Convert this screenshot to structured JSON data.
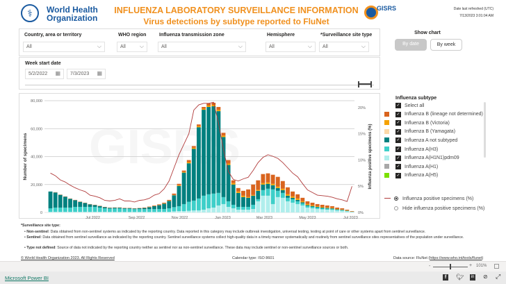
{
  "header": {
    "org_name_line1": "World Health",
    "org_name_line2": "Organization",
    "title": "INFLUENZA LABORATORY SURVEILLANCE INFORMATION",
    "subtitle": "Virus detections by subtype reported to FluNet",
    "gisrs_logo": "GISRS",
    "refresh_label": "Date last refreshed (UTC)",
    "refresh_value": "7/13/2023 3:01:04 AM"
  },
  "filters": [
    {
      "label": "Country, area or territory",
      "value": "All"
    },
    {
      "label": "WHO region",
      "value": "All"
    },
    {
      "label": "Influenza transmission zone",
      "value": "All"
    },
    {
      "label": "Hemisphere",
      "value": "All"
    },
    {
      "label": "*Surveillance site type",
      "value": "All"
    }
  ],
  "date_filter": {
    "label": "Week start date",
    "start": "5/2/2022",
    "end": "7/3/2023"
  },
  "show_chart": {
    "label": "Show chart",
    "by_date": "By date",
    "by_week": "By week",
    "selected": "By date"
  },
  "legend": {
    "title": "Influenza subtype",
    "select_all": "Select all",
    "items": [
      {
        "label": "Influenza B (lineage not determined)",
        "color": "#d9641e"
      },
      {
        "label": "Influenza B (Victoria)",
        "color": "#f5a200"
      },
      {
        "label": "Influenza B (Yamagata)",
        "color": "#fcd9a8"
      },
      {
        "label": "Influenza A not subtyped",
        "color": "#00807f"
      },
      {
        "label": "Influenza A(H3)",
        "color": "#3ecfc9"
      },
      {
        "label": "Influenza A(H1N1)pdm09",
        "color": "#b0eeec"
      },
      {
        "label": "Influenza A(H1)",
        "color": "#a8a8a8"
      },
      {
        "label": "Influenza A(H5)",
        "color": "#7be000"
      }
    ],
    "line_option": "Influenza positive specimens (%)",
    "hide_option": "Hide influenza positive specimens (%)",
    "line_color": "#b03a3a"
  },
  "chart_data": {
    "type": "bar",
    "ylabel": "Number of specimens",
    "y2label": "Influenza positive specimens (%)",
    "ylim": [
      0,
      80000
    ],
    "y2lim": [
      0,
      21.3
    ],
    "yticks": [
      "0",
      "20,000",
      "40,000",
      "60,000",
      "80,000"
    ],
    "y2ticks": [
      "0%",
      "5%",
      "10%",
      "15%",
      "20%"
    ],
    "xticks": [
      "Jul 2022",
      "Sep 2022",
      "Nov 2022",
      "Jan 2023",
      "Mar 2023",
      "May 2023",
      "Jul 2023"
    ],
    "grid": true,
    "series": [
      {
        "name": "Influenza A(H1N1)pdm09",
        "color": "#b0eeec",
        "values": [
          500,
          500,
          500,
          500,
          500,
          500,
          500,
          500,
          500,
          500,
          500,
          500,
          400,
          400,
          400,
          400,
          400,
          400,
          400,
          400,
          400,
          400,
          500,
          500,
          500,
          800,
          1000,
          1000,
          1200,
          1500,
          1500,
          2000,
          3000,
          3500,
          5000,
          6000,
          4000,
          3000,
          2000,
          2000,
          2000,
          2500,
          8000,
          12000,
          12000,
          6000,
          11000,
          10500,
          8000,
          7000,
          6000,
          5000,
          3500,
          3000,
          2500,
          2200,
          2000,
          1800,
          1400,
          1200,
          800,
          400
        ]
      },
      {
        "name": "Influenza A(H3)",
        "color": "#3ecfc9",
        "values": [
          2500,
          3000,
          3000,
          3000,
          3000,
          3500,
          3500,
          3500,
          3500,
          3500,
          3000,
          2500,
          2400,
          2400,
          2400,
          2200,
          2200,
          2000,
          2000,
          2000,
          2000,
          2000,
          2000,
          2000,
          2500,
          3000,
          3500,
          5000,
          6500,
          7000,
          8500,
          10000,
          10000,
          10000,
          9000,
          5000,
          4000,
          2500,
          2000,
          2000,
          2000,
          3000,
          1500,
          4000,
          5000,
          10500,
          4500,
          3500,
          2500,
          2500,
          2000,
          1500,
          1200,
          1000,
          1000,
          800,
          800,
          700,
          500,
          400,
          300,
          100
        ]
      },
      {
        "name": "Influenza A not subtyped",
        "color": "#00807f",
        "values": [
          12000,
          10800,
          9100,
          7800,
          6300,
          4800,
          3600,
          2800,
          1800,
          1300,
          1100,
          800,
          500,
          600,
          600,
          500,
          500,
          400,
          600,
          800,
          1400,
          2100,
          2700,
          3800,
          5200,
          8500,
          14500,
          22500,
          27500,
          37000,
          51000,
          61500,
          62500,
          62500,
          58500,
          43000,
          26000,
          14500,
          10000,
          7000,
          6500,
          6500,
          6000,
          4000,
          3500,
          3000,
          2000,
          2000,
          1500,
          1000,
          1000,
          800,
          600,
          600,
          500,
          500,
          400,
          400,
          300,
          300,
          200,
          100
        ]
      },
      {
        "name": "Influenza B (Victoria)",
        "color": "#f5a200",
        "values": [
          0,
          0,
          0,
          0,
          0,
          0,
          0,
          0,
          0,
          0,
          0,
          0,
          0,
          0,
          0,
          0,
          0,
          0,
          0,
          0,
          100,
          100,
          100,
          200,
          200,
          200,
          500,
          500,
          800,
          800,
          800,
          800,
          1000,
          1000,
          1000,
          1000,
          1000,
          1000,
          1000,
          1000,
          500,
          500,
          700,
          1000,
          1000,
          1000,
          1000,
          1000,
          1000,
          1000,
          1000,
          700,
          700,
          600,
          500,
          500,
          400,
          400,
          300,
          200,
          200,
          100
        ]
      },
      {
        "name": "Influenza B (lineage not determined)",
        "color": "#d9641e",
        "values": [
          0,
          200,
          200,
          200,
          200,
          200,
          200,
          200,
          200,
          200,
          200,
          200,
          200,
          200,
          200,
          200,
          200,
          200,
          200,
          300,
          300,
          400,
          500,
          500,
          600,
          1000,
          1000,
          1000,
          1500,
          1200,
          1200,
          1200,
          1500,
          1500,
          2000,
          2000,
          2500,
          2000,
          2500,
          3500,
          5500,
          7500,
          6800,
          6500,
          6500,
          6500,
          7000,
          5500,
          5000,
          3500,
          3000,
          2500,
          2000,
          1800,
          1500,
          1500,
          1400,
          1200,
          1000,
          900,
          500,
          300
        ]
      }
    ],
    "line": {
      "name": "Influenza positive specimens (%)",
      "color": "#b03a3a",
      "values": [
        7.5,
        7,
        6.2,
        5.8,
        5.2,
        4.7,
        4.3,
        4,
        3.3,
        3.1,
        2.8,
        2.3,
        2.2,
        2.3,
        2.6,
        2.2,
        2.2,
        2,
        2.3,
        2.4,
        2.7,
        3.3,
        3.6,
        4.5,
        6,
        8.5,
        11,
        13,
        15,
        19.5,
        20.5,
        20.8,
        20.8,
        21,
        17,
        12,
        7.8,
        6.3,
        6,
        6.4,
        6.7,
        8,
        9.5,
        10.5,
        11,
        10.7,
        10.3,
        9.5,
        8.5,
        7.5,
        6.8,
        5.5,
        4.3,
        3.8,
        3.3,
        3.2,
        3.1,
        2.9,
        2.6,
        2.4,
        2.1,
        5
      ]
    }
  },
  "notes": {
    "title": "*Surveillance site type:",
    "items": [
      {
        "term": "Non-sentinel",
        "text": ": Data obtained from non-sentinel systems as indicated by the reporting country. Data reported in this category may include outbreak investigation, universal testing, testing at point of care or other systems apart from sentinel surveillance."
      },
      {
        "term": "Sentinel",
        "text": ": Data obtained from sentinel surveillance as indicated by the reporting country. Sentinel surveillance systems collect high-quality data in a timely manner systematically and routinely from sentinel surveillance sites representatives of the population under surveillance."
      },
      {
        "term": "Type not defined",
        "text": ": Source of data not indicated by the reporting country neither as sentinel nor as non-sentinel surveillance. These data may include sentinel or non-sentinel surveillance sources or both."
      }
    ]
  },
  "footer": {
    "copyright": "© World Health Organization 2023. All Rights Reserved",
    "calendar": "Calendar type: ISO 8601",
    "source_prefix": "Data source: FluNet (",
    "source_link": "https://www.who.int/tools/flunet",
    "source_suffix": ")"
  },
  "statusbar": {
    "zoom": "101%",
    "powerbi": "Microsoft Power BI"
  }
}
